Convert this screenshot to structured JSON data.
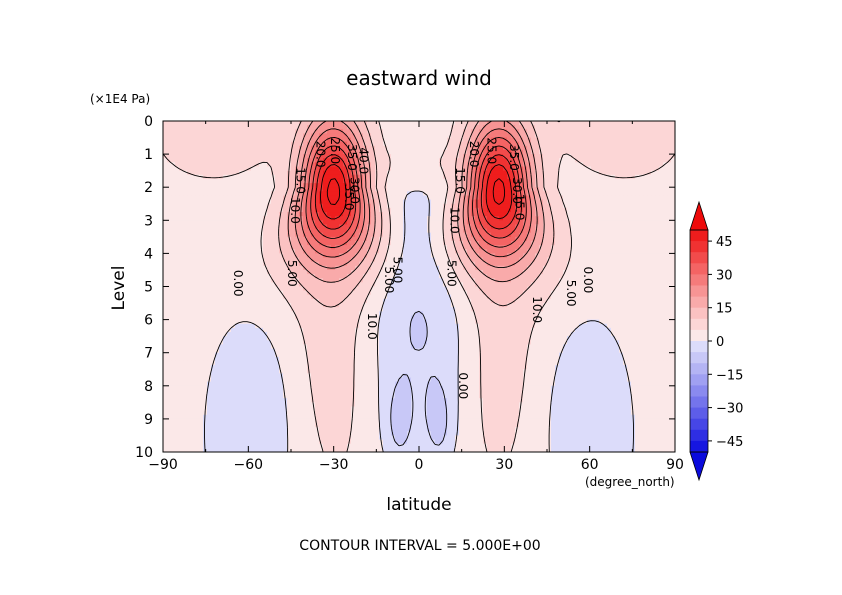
{
  "chart_data": {
    "type": "contour",
    "title": "eastward wind",
    "xlabel": "latitude",
    "x_units": "(degree_north)",
    "ylabel": "Level",
    "y_units": "(×1E4 Pa)",
    "xlim": [
      -90,
      90
    ],
    "ylim": [
      10,
      0
    ],
    "x_ticks": [
      -90,
      -60,
      -30,
      0,
      30,
      60,
      90
    ],
    "x_tick_labels": [
      "−90",
      "−60",
      "−30",
      "0",
      "30",
      "60",
      "90"
    ],
    "y_ticks": [
      0,
      1,
      2,
      3,
      4,
      5,
      6,
      7,
      8,
      9,
      10
    ],
    "contour_interval_text": "CONTOUR INTERVAL = 5.000E+00",
    "contour_interval": 5,
    "levels": [
      -50,
      -45,
      -40,
      -35,
      -30,
      -25,
      -20,
      -15,
      -10,
      -5,
      0,
      5,
      10,
      15,
      20,
      25,
      30,
      35,
      40,
      45,
      50
    ],
    "colorbar": {
      "ticks": [
        45,
        30,
        15,
        0,
        -15,
        -30,
        -45
      ],
      "tick_labels": [
        "45",
        "30",
        "15",
        "0",
        "−15",
        "−30",
        "−45"
      ],
      "extend": "both"
    },
    "jets": [
      {
        "lat": -30,
        "level": 2.1,
        "max": 47
      },
      {
        "lat": 28,
        "level": 2.1,
        "max": 47
      }
    ],
    "contour_labels": [
      {
        "text": "20.0",
        "lat": -36,
        "level": 1.0
      },
      {
        "text": "25.0",
        "lat": -31,
        "level": 0.9
      },
      {
        "text": "35.0",
        "lat": -25,
        "level": 1.1
      },
      {
        "text": "40.0",
        "lat": -21,
        "level": 1.2
      },
      {
        "text": "15.0",
        "lat": -43,
        "level": 1.8
      },
      {
        "text": "10.0",
        "lat": -45,
        "level": 2.7
      },
      {
        "text": "35.0",
        "lat": -26,
        "level": 2.3
      },
      {
        "text": "30.0",
        "lat": -24,
        "level": 2.1
      },
      {
        "text": "5.00",
        "lat": -46,
        "level": 4.6
      },
      {
        "text": "0.00",
        "lat": -65,
        "level": 4.9
      },
      {
        "text": "5.00",
        "lat": -12,
        "level": 4.8
      },
      {
        "text": "5.00",
        "lat": -9,
        "level": 4.5
      },
      {
        "text": "10.0",
        "lat": -18,
        "level": 6.2
      },
      {
        "text": "15.0",
        "lat": 13,
        "level": 1.8
      },
      {
        "text": "20.0",
        "lat": 18,
        "level": 1.0
      },
      {
        "text": "25.0",
        "lat": 24,
        "level": 0.9
      },
      {
        "text": "35.0",
        "lat": 32,
        "level": 1.1
      },
      {
        "text": "10.0",
        "lat": 11,
        "level": 3.0
      },
      {
        "text": "30.0",
        "lat": 33,
        "level": 2.1
      },
      {
        "text": "15.0",
        "lat": 34,
        "level": 2.6
      },
      {
        "text": "5.00",
        "lat": 10,
        "level": 4.6
      },
      {
        "text": "10.0",
        "lat": 40,
        "level": 5.7
      },
      {
        "text": "5.00",
        "lat": 52,
        "level": 5.2
      },
      {
        "text": "0.00",
        "lat": 58,
        "level": 4.8
      },
      {
        "text": "0.00",
        "lat": 14,
        "level": 8.0
      }
    ],
    "colors": {
      "pos": [
        "#fbe8e8",
        "#fcd6d6",
        "#fbc2c2",
        "#f9aaaa",
        "#f79494",
        "#f57b7b",
        "#f46464",
        "#f24b4b",
        "#f03232",
        "#ef1d1d"
      ],
      "neg": [
        "#dcdcfa",
        "#c8c8f7",
        "#b4b4f4",
        "#a0a0f2",
        "#8a8aef",
        "#7474ec",
        "#5d5de9",
        "#4646e6",
        "#2e2ee3",
        "#1616e0"
      ],
      "max_end": "#ee0a0a",
      "min_end": "#0a0adc"
    }
  }
}
